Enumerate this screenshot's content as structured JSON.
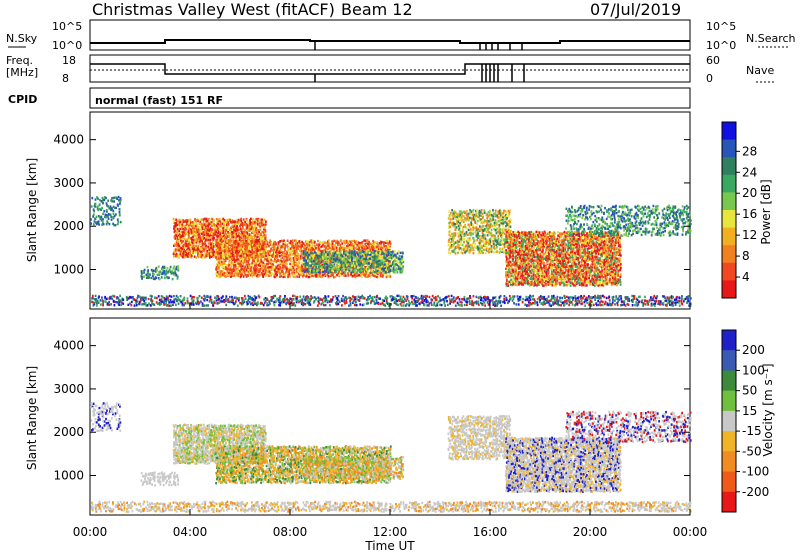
{
  "header": {
    "title": "Christmas Valley West (fitACF)",
    "beam": "Beam 12",
    "date": "07/Jul/2019"
  },
  "info_panels": {
    "nsky_label": "N.Sky",
    "nsky_ticks": [
      "10^5",
      "10^0"
    ],
    "nsearch_label": "N.Search",
    "nsearch_ticks": [
      "10^5",
      "10^0"
    ],
    "freq_label_1": "Freq.",
    "freq_label_2": "[MHz]",
    "freq_ticks": [
      "18",
      "8"
    ],
    "nave_label": "Nave",
    "nave_ticks": [
      "60",
      "0"
    ],
    "cpid_label": "CPID",
    "cpid_value": "normal (fast) 151 RF"
  },
  "chart_data": [
    {
      "type": "heatmap",
      "name": "power-panel",
      "ylabel": "Slant Range [km]",
      "yticks": [
        "1000",
        "2000",
        "3000",
        "4000"
      ],
      "colorbar_label": "Power [dB]",
      "colorbar_ticks": [
        "4",
        "8",
        "12",
        "16",
        "20",
        "24",
        "28"
      ],
      "colorbar_colors": [
        "#1010e0",
        "#2855b8",
        "#2f8060",
        "#3aa860",
        "#78c850",
        "#e6e63c",
        "#f0b020",
        "#f08020",
        "#f04820",
        "#e81818"
      ]
    },
    {
      "type": "heatmap",
      "name": "velocity-panel",
      "ylabel": "Slant Range [km]",
      "yticks": [
        "1000",
        "2000",
        "3000",
        "4000"
      ],
      "xlabel": "Time UT",
      "xticks": [
        "00:00",
        "04:00",
        "08:00",
        "12:00",
        "16:00",
        "20:00",
        "00:00"
      ],
      "colorbar_label": "Velocity [m s⁻¹]",
      "colorbar_ticks": [
        "200",
        "100",
        "50",
        "15",
        "-15",
        "-50",
        "-100",
        "-200"
      ],
      "colorbar_colors": [
        "#2020c8",
        "#3a5ab4",
        "#3c8a3c",
        "#70c040",
        "#c8c8c8",
        "#f0b428",
        "#f08c20",
        "#f05a18",
        "#e81818"
      ]
    }
  ]
}
